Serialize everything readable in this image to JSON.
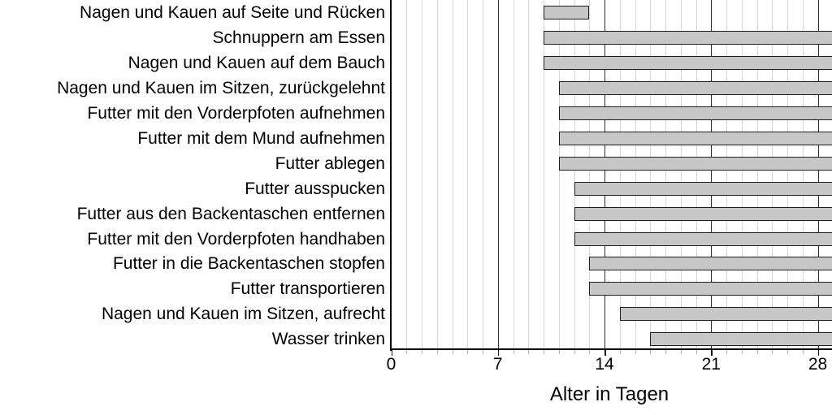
{
  "chart_data": {
    "type": "bar",
    "orientation": "horizontal",
    "title": "",
    "xlabel": "Alter in Tagen",
    "ylabel": "",
    "x_ticks": [
      0,
      7,
      14,
      21,
      28
    ],
    "x_axis_visible_range": [
      0,
      28.9
    ],
    "minor_grid_interval_days": 1,
    "major_grid_interval_days": 7,
    "grid": "vertical minor gridlines every day, darker major gridlines every 7 days",
    "legend": null,
    "note_right_edge": "all bars except the first are cut off at the right image edge (beyond day 28.9)",
    "categories": [
      "Nagen und Kauen auf Seite und Rücken",
      "Schnuppern am Essen",
      "Nagen und Kauen auf dem Bauch",
      "Nagen und Kauen im Sitzen, zurückgelehnt",
      "Futter mit den Vorderpfoten aufnehmen",
      "Futter mit dem Mund aufnehmen",
      "Futter ablegen",
      "Futter ausspucken",
      "Futter aus den Backentaschen entfernen",
      "Futter mit den Vorderpfoten handhaben",
      "Futter in die Backentaschen stopfen",
      "Futter transportieren",
      "Nagen und Kauen im Sitzen, aufrecht",
      "Wasser trinken"
    ],
    "bars": [
      {
        "label": "Nagen und Kauen auf Seite und Rücken",
        "start_day": 10,
        "end_day": 13,
        "extends_beyond_view": false
      },
      {
        "label": "Schnuppern am Essen",
        "start_day": 10,
        "end_day": null,
        "extends_beyond_view": true
      },
      {
        "label": "Nagen und Kauen auf dem Bauch",
        "start_day": 10,
        "end_day": null,
        "extends_beyond_view": true
      },
      {
        "label": "Nagen und Kauen im Sitzen, zurückgelehnt",
        "start_day": 11,
        "end_day": null,
        "extends_beyond_view": true
      },
      {
        "label": "Futter mit den Vorderpfoten aufnehmen",
        "start_day": 11,
        "end_day": null,
        "extends_beyond_view": true
      },
      {
        "label": "Futter mit dem Mund aufnehmen",
        "start_day": 11,
        "end_day": null,
        "extends_beyond_view": true
      },
      {
        "label": "Futter ablegen",
        "start_day": 11,
        "end_day": null,
        "extends_beyond_view": true
      },
      {
        "label": "Futter ausspucken",
        "start_day": 12,
        "end_day": null,
        "extends_beyond_view": true
      },
      {
        "label": "Futter aus den Backentaschen entfernen",
        "start_day": 12,
        "end_day": null,
        "extends_beyond_view": true
      },
      {
        "label": "Futter mit den Vorderpfoten handhaben",
        "start_day": 12,
        "end_day": null,
        "extends_beyond_view": true
      },
      {
        "label": "Futter in die Backentaschen stopfen",
        "start_day": 13,
        "end_day": null,
        "extends_beyond_view": true
      },
      {
        "label": "Futter transportieren",
        "start_day": 13,
        "end_day": null,
        "extends_beyond_view": true
      },
      {
        "label": "Nagen und Kauen im Sitzen, aufrecht",
        "start_day": 15,
        "end_day": null,
        "extends_beyond_view": true
      },
      {
        "label": "Wasser trinken",
        "start_day": 17,
        "end_day": null,
        "extends_beyond_view": true
      }
    ],
    "colors": {
      "background": "#ffffff",
      "bar_fill": "#c7c7c7",
      "bar_border": "#1f1f1f",
      "grid_minor": "#d6d6d6",
      "grid_major": "#2e2e2e",
      "axis": "#000000",
      "text": "#000000"
    }
  }
}
